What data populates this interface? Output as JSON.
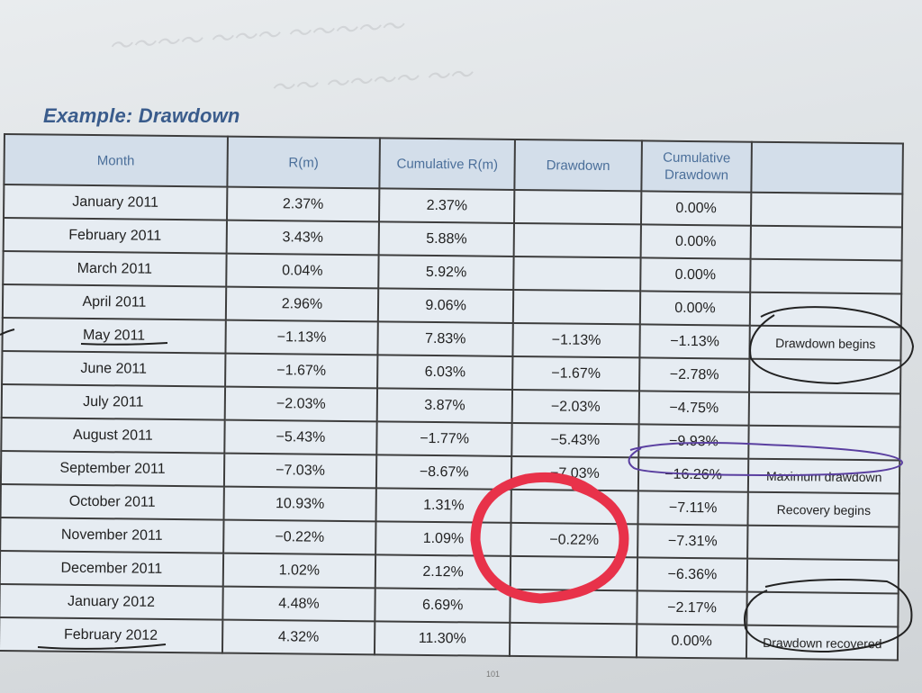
{
  "heading": "Example: Drawdown",
  "columns": [
    "Month",
    "R(m)",
    "Cumulative R(m)",
    "Drawdown",
    "Cumulative Drawdown",
    ""
  ],
  "rows": [
    {
      "month": "January 2011",
      "rm": "2.37%",
      "cum_rm": "2.37%",
      "drawdown": "",
      "cum_drawdown": "0.00%",
      "note": ""
    },
    {
      "month": "February 2011",
      "rm": "3.43%",
      "cum_rm": "5.88%",
      "drawdown": "",
      "cum_drawdown": "0.00%",
      "note": ""
    },
    {
      "month": "March 2011",
      "rm": "0.04%",
      "cum_rm": "5.92%",
      "drawdown": "",
      "cum_drawdown": "0.00%",
      "note": ""
    },
    {
      "month": "April 2011",
      "rm": "2.96%",
      "cum_rm": "9.06%",
      "drawdown": "",
      "cum_drawdown": "0.00%",
      "note": ""
    },
    {
      "month": "May 2011",
      "rm": "−1.13%",
      "cum_rm": "7.83%",
      "drawdown": "−1.13%",
      "cum_drawdown": "−1.13%",
      "note": "Drawdown begins"
    },
    {
      "month": "June 2011",
      "rm": "−1.67%",
      "cum_rm": "6.03%",
      "drawdown": "−1.67%",
      "cum_drawdown": "−2.78%",
      "note": ""
    },
    {
      "month": "July 2011",
      "rm": "−2.03%",
      "cum_rm": "3.87%",
      "drawdown": "−2.03%",
      "cum_drawdown": "−4.75%",
      "note": ""
    },
    {
      "month": "August 2011",
      "rm": "−5.43%",
      "cum_rm": "−1.77%",
      "drawdown": "−5.43%",
      "cum_drawdown": "−9.93%",
      "note": ""
    },
    {
      "month": "September 2011",
      "rm": "−7.03%",
      "cum_rm": "−8.67%",
      "drawdown": "−7.03%",
      "cum_drawdown": "−16.26%",
      "note": "Maximum drawdown"
    },
    {
      "month": "October 2011",
      "rm": "10.93%",
      "cum_rm": "1.31%",
      "drawdown": "",
      "cum_drawdown": "−7.11%",
      "note": "Recovery begins"
    },
    {
      "month": "November 2011",
      "rm": "−0.22%",
      "cum_rm": "1.09%",
      "drawdown": "−0.22%",
      "cum_drawdown": "−7.31%",
      "note": ""
    },
    {
      "month": "December 2011",
      "rm": "1.02%",
      "cum_rm": "2.12%",
      "drawdown": "",
      "cum_drawdown": "−6.36%",
      "note": ""
    },
    {
      "month": "January 2012",
      "rm": "4.48%",
      "cum_rm": "6.69%",
      "drawdown": "",
      "cum_drawdown": "−2.17%",
      "note": ""
    },
    {
      "month": "February 2012",
      "rm": "4.32%",
      "cum_rm": "11.30%",
      "drawdown": "",
      "cum_drawdown": "0.00%",
      "note": "Drawdown recovered"
    }
  ],
  "page_number": "101",
  "colors": {
    "heading": "#3a5c8c",
    "header_text": "#4b6f9a",
    "red_ink": "#e8324a",
    "purple_ink": "#5a3fa0"
  }
}
